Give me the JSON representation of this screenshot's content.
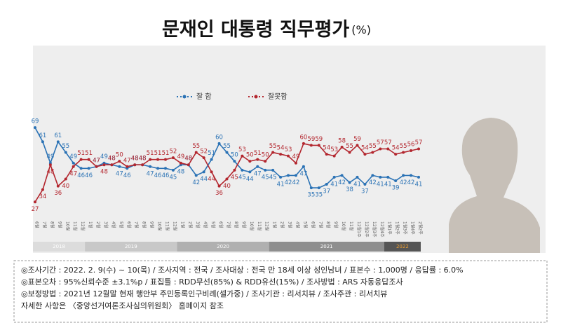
{
  "chart_data": {
    "type": "line",
    "title": "문재인 대통령 직무평가",
    "title_unit": "(%)",
    "categories": [
      "6월",
      "7월",
      "8월",
      "9월",
      "10월",
      "11월",
      "12월",
      "1월",
      "2월",
      "3월",
      "4월",
      "5월",
      "6월",
      "7월",
      "8월",
      "9월",
      "10월",
      "11월",
      "12월",
      "1월",
      "2월",
      "3월",
      "4월",
      "5월",
      "6월",
      "7월",
      "8월",
      "9월",
      "10월",
      "11월",
      "12월",
      "1월",
      "2월",
      "3월",
      "4월",
      "5월",
      "6월",
      "7월",
      "8월",
      "9월",
      "10월",
      "11월",
      "12월1주",
      "12월2주",
      "12월3주",
      "12월4주",
      "1월1주",
      "1월2주",
      "1월3주",
      "1월4주",
      "2월2주"
    ],
    "series": [
      {
        "name": "잘 함",
        "color": "#2a72b5",
        "values": [
          69,
          61,
          49,
          61,
          55,
          49,
          46,
          46,
          47,
          49,
          48,
          47,
          46,
          48,
          48,
          47,
          46,
          46,
          45,
          48,
          48,
          42,
          44,
          51,
          60,
          55,
          50,
          45,
          44,
          47,
          45,
          45,
          41,
          42,
          42,
          47,
          35,
          35,
          37,
          41,
          42,
          38,
          41,
          37,
          42,
          41,
          41,
          39,
          42,
          42,
          41
        ]
      },
      {
        "name": "잘못함",
        "color": "#b3262e",
        "values": [
          27,
          34,
          48,
          36,
          40,
          47,
          51,
          51,
          47,
          48,
          48,
          50,
          47,
          48,
          48,
          51,
          51,
          51,
          52,
          49,
          48,
          55,
          52,
          44,
          36,
          40,
          45,
          53,
          50,
          51,
          50,
          55,
          54,
          53,
          49,
          60,
          59,
          59,
          54,
          53,
          58,
          55,
          59,
          54,
          55,
          57,
          57,
          54,
          55,
          56,
          57
        ]
      }
    ],
    "ylim": [
      20,
      75
    ],
    "periods": [
      {
        "label": "2018",
        "first": 0,
        "last": 6
      },
      {
        "label": "2019",
        "first": 7,
        "last": 18
      },
      {
        "label": "2020",
        "first": 19,
        "last": 30
      },
      {
        "label": "2021",
        "first": 31,
        "last": 45
      },
      {
        "label": "2022",
        "first": 46,
        "last": 50
      }
    ],
    "notes": [
      "◎조사기간 : 2022. 2. 9(수) ~ 10(목) / 조사지역 : 전국 / 조사대상 : 전국 만 18세 이상 성인남녀 / 표본수 : 1,000명 / 응답률 : 6.0%",
      "◎표본오차 : 95%신뢰수준 ±3.1%p / 표집틀 : RDD무선(85%) & RDD유선(15%) / 조사방법 : ARS 자동응답조사",
      "◎보정방법 : 2021년 12월말 현재 행안부 주민등록인구비례(셀가중) / 조사기관 : 리서치뷰 / 조사주관 : 리서치뷰",
      "자세한 사항은 〈중앙선거여론조사심의위원회〉 홈페이지 참조"
    ]
  }
}
